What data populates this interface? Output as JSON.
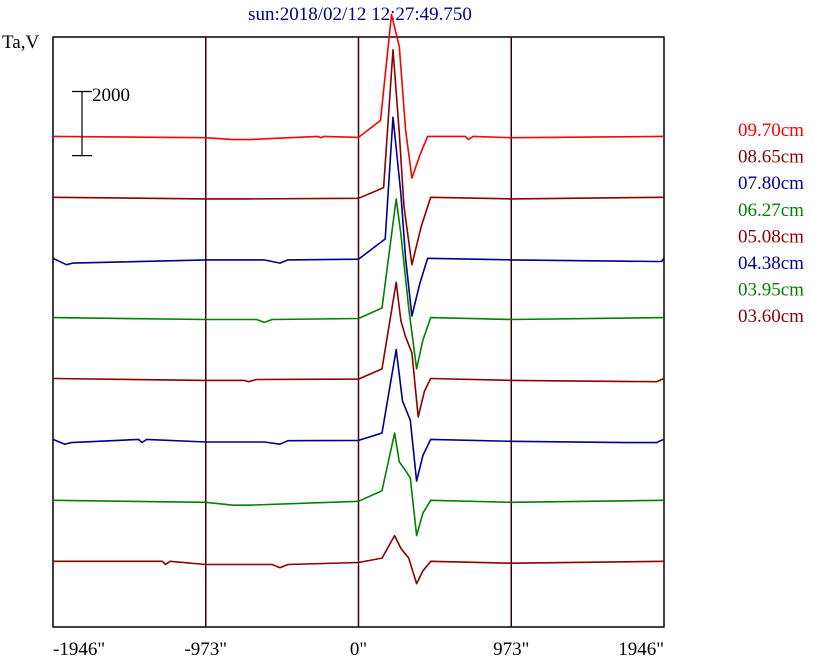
{
  "chart_data": {
    "type": "line",
    "title": "sun:2018/02/12 12:27:49.750",
    "ylabel": "Ta,V",
    "scale_bar_label": "2000",
    "x_ticks": [
      {
        "value": -1946,
        "label": "-1946\""
      },
      {
        "value": -973,
        "label": "-973\""
      },
      {
        "value": 0,
        "label": "0\""
      },
      {
        "value": 973,
        "label": "973\""
      },
      {
        "value": 1946,
        "label": "1946\""
      }
    ],
    "xlim": [
      -1946,
      1946
    ],
    "ylim": [
      -4700,
      13700
    ],
    "scale_bar": [
      10000,
      12000
    ],
    "vertical_lines": [
      -973,
      0,
      973
    ],
    "series": [
      {
        "name": "09.70cm",
        "color": "#ff0000",
        "baseline": 10600,
        "points": [
          [
            -1946,
            0
          ],
          [
            -973,
            -40
          ],
          [
            -800,
            -100
          ],
          [
            -700,
            -100
          ],
          [
            -260,
            0
          ],
          [
            -240,
            -40
          ],
          [
            -220,
            0
          ],
          [
            0,
            -30
          ],
          [
            140,
            500
          ],
          [
            210,
            3800
          ],
          [
            260,
            2800
          ],
          [
            300,
            200
          ],
          [
            340,
            -1300
          ],
          [
            390,
            -600
          ],
          [
            440,
            0
          ],
          [
            680,
            0
          ],
          [
            700,
            -100
          ],
          [
            730,
            0
          ],
          [
            973,
            -40
          ],
          [
            1946,
            0
          ]
        ]
      },
      {
        "name": "08.65cm",
        "color": "#8b0000",
        "baseline": 8700,
        "points": [
          [
            -1946,
            0
          ],
          [
            -973,
            -50
          ],
          [
            -700,
            -50
          ],
          [
            0,
            -30
          ],
          [
            160,
            300
          ],
          [
            220,
            4600
          ],
          [
            260,
            2000
          ],
          [
            290,
            -300
          ],
          [
            340,
            -2100
          ],
          [
            400,
            -900
          ],
          [
            460,
            0
          ],
          [
            973,
            -50
          ],
          [
            1946,
            0
          ]
        ]
      },
      {
        "name": "07.80cm",
        "color": "#00008b",
        "baseline": 6800,
        "points": [
          [
            -1946,
            0
          ],
          [
            -1860,
            -200
          ],
          [
            -1820,
            -150
          ],
          [
            -973,
            -50
          ],
          [
            -600,
            -50
          ],
          [
            -500,
            -150
          ],
          [
            -450,
            -50
          ],
          [
            0,
            -30
          ],
          [
            170,
            600
          ],
          [
            220,
            4400
          ],
          [
            270,
            2000
          ],
          [
            300,
            0
          ],
          [
            340,
            -1800
          ],
          [
            390,
            -800
          ],
          [
            440,
            0
          ],
          [
            973,
            -50
          ],
          [
            1900,
            -100
          ],
          [
            1930,
            -100
          ],
          [
            1946,
            0
          ]
        ]
      },
      {
        "name": "06.27cm",
        "color": "#008000",
        "baseline": 4950,
        "points": [
          [
            -1946,
            0
          ],
          [
            -973,
            -60
          ],
          [
            -650,
            -60
          ],
          [
            -600,
            -150
          ],
          [
            -550,
            -60
          ],
          [
            0,
            -30
          ],
          [
            150,
            300
          ],
          [
            240,
            3700
          ],
          [
            270,
            2600
          ],
          [
            320,
            300
          ],
          [
            370,
            -1600
          ],
          [
            410,
            -700
          ],
          [
            460,
            0
          ],
          [
            973,
            -60
          ],
          [
            1946,
            0
          ]
        ]
      },
      {
        "name": "05.08cm",
        "color": "#8b0000",
        "baseline": 3050,
        "points": [
          [
            -1946,
            0
          ],
          [
            -973,
            -60
          ],
          [
            -730,
            -60
          ],
          [
            -700,
            -100
          ],
          [
            -650,
            -30
          ],
          [
            0,
            -20
          ],
          [
            150,
            300
          ],
          [
            240,
            3000
          ],
          [
            270,
            1800
          ],
          [
            300,
            1300
          ],
          [
            340,
            800
          ],
          [
            380,
            -1200
          ],
          [
            420,
            -400
          ],
          [
            460,
            0
          ],
          [
            973,
            -60
          ],
          [
            1900,
            -100
          ],
          [
            1946,
            0
          ]
        ]
      },
      {
        "name": "04.38cm",
        "color": "#00008b",
        "baseline": 1150,
        "points": [
          [
            -1946,
            0
          ],
          [
            -1870,
            -150
          ],
          [
            -1830,
            -100
          ],
          [
            -1400,
            0
          ],
          [
            -1380,
            -100
          ],
          [
            -1350,
            0
          ],
          [
            -973,
            -80
          ],
          [
            -600,
            -80
          ],
          [
            -500,
            -150
          ],
          [
            -450,
            -40
          ],
          [
            0,
            -30
          ],
          [
            150,
            200
          ],
          [
            240,
            2800
          ],
          [
            280,
            1200
          ],
          [
            330,
            600
          ],
          [
            370,
            -1300
          ],
          [
            410,
            -500
          ],
          [
            460,
            0
          ],
          [
            973,
            -60
          ],
          [
            1700,
            -100
          ],
          [
            1900,
            -100
          ],
          [
            1920,
            -50
          ],
          [
            1946,
            0
          ]
        ]
      },
      {
        "name": "03.95cm",
        "color": "#008000",
        "baseline": -750,
        "points": [
          [
            -1946,
            0
          ],
          [
            -973,
            -60
          ],
          [
            -800,
            -150
          ],
          [
            -700,
            -150
          ],
          [
            0,
            -30
          ],
          [
            150,
            300
          ],
          [
            230,
            2100
          ],
          [
            260,
            1200
          ],
          [
            290,
            1000
          ],
          [
            330,
            700
          ],
          [
            370,
            -1100
          ],
          [
            410,
            -400
          ],
          [
            460,
            0
          ],
          [
            973,
            -60
          ],
          [
            1946,
            0
          ]
        ]
      },
      {
        "name": "03.60cm",
        "color": "#8b0000",
        "baseline": -2650,
        "points": [
          [
            -1946,
            0
          ],
          [
            -1250,
            0
          ],
          [
            -1230,
            -100
          ],
          [
            -1200,
            0
          ],
          [
            -973,
            -100
          ],
          [
            -550,
            -100
          ],
          [
            -500,
            -200
          ],
          [
            -450,
            -100
          ],
          [
            0,
            -40
          ],
          [
            150,
            100
          ],
          [
            230,
            800
          ],
          [
            270,
            400
          ],
          [
            320,
            100
          ],
          [
            370,
            -700
          ],
          [
            410,
            -300
          ],
          [
            460,
            0
          ],
          [
            973,
            -60
          ],
          [
            1946,
            0
          ]
        ]
      }
    ]
  }
}
